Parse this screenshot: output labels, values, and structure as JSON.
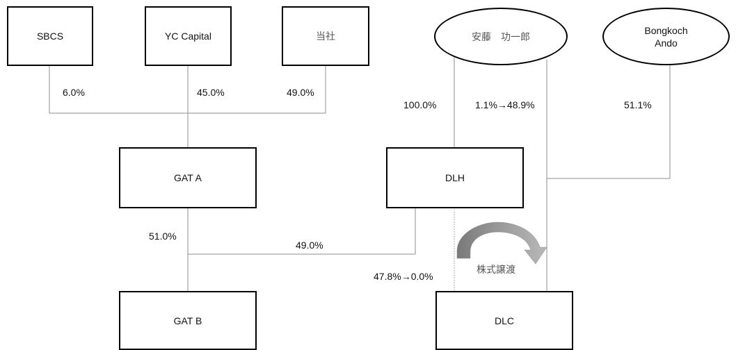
{
  "nodes": {
    "sbcs": "SBCS",
    "yc_capital": "YC Capital",
    "tousha": "当社",
    "ando_koichiro": "安藤　功一郎",
    "bongkoch_line1": "Bongkoch",
    "bongkoch_line2": "Ando",
    "gat_a": "GAT A",
    "dlh": "DLH",
    "gat_b": "GAT B",
    "dlc": "DLC"
  },
  "percentages": {
    "sbcs_to_gata": "6.0%",
    "yc_to_gata": "45.0%",
    "tousha_to_gata": "49.0%",
    "ando_to_dlh": "100.0%",
    "ando_to_dlc": "1.1%→48.9%",
    "bongkoch_to_dlc": "51.1%",
    "gata_to_gatb": "51.0%",
    "dlh_to_gatb": "49.0%",
    "dlh_to_dlc": "47.8%→0.0%"
  },
  "transfer_label": "株式譲渡",
  "icons": {
    "transfer_arrow": "curved-arrow-icon"
  }
}
